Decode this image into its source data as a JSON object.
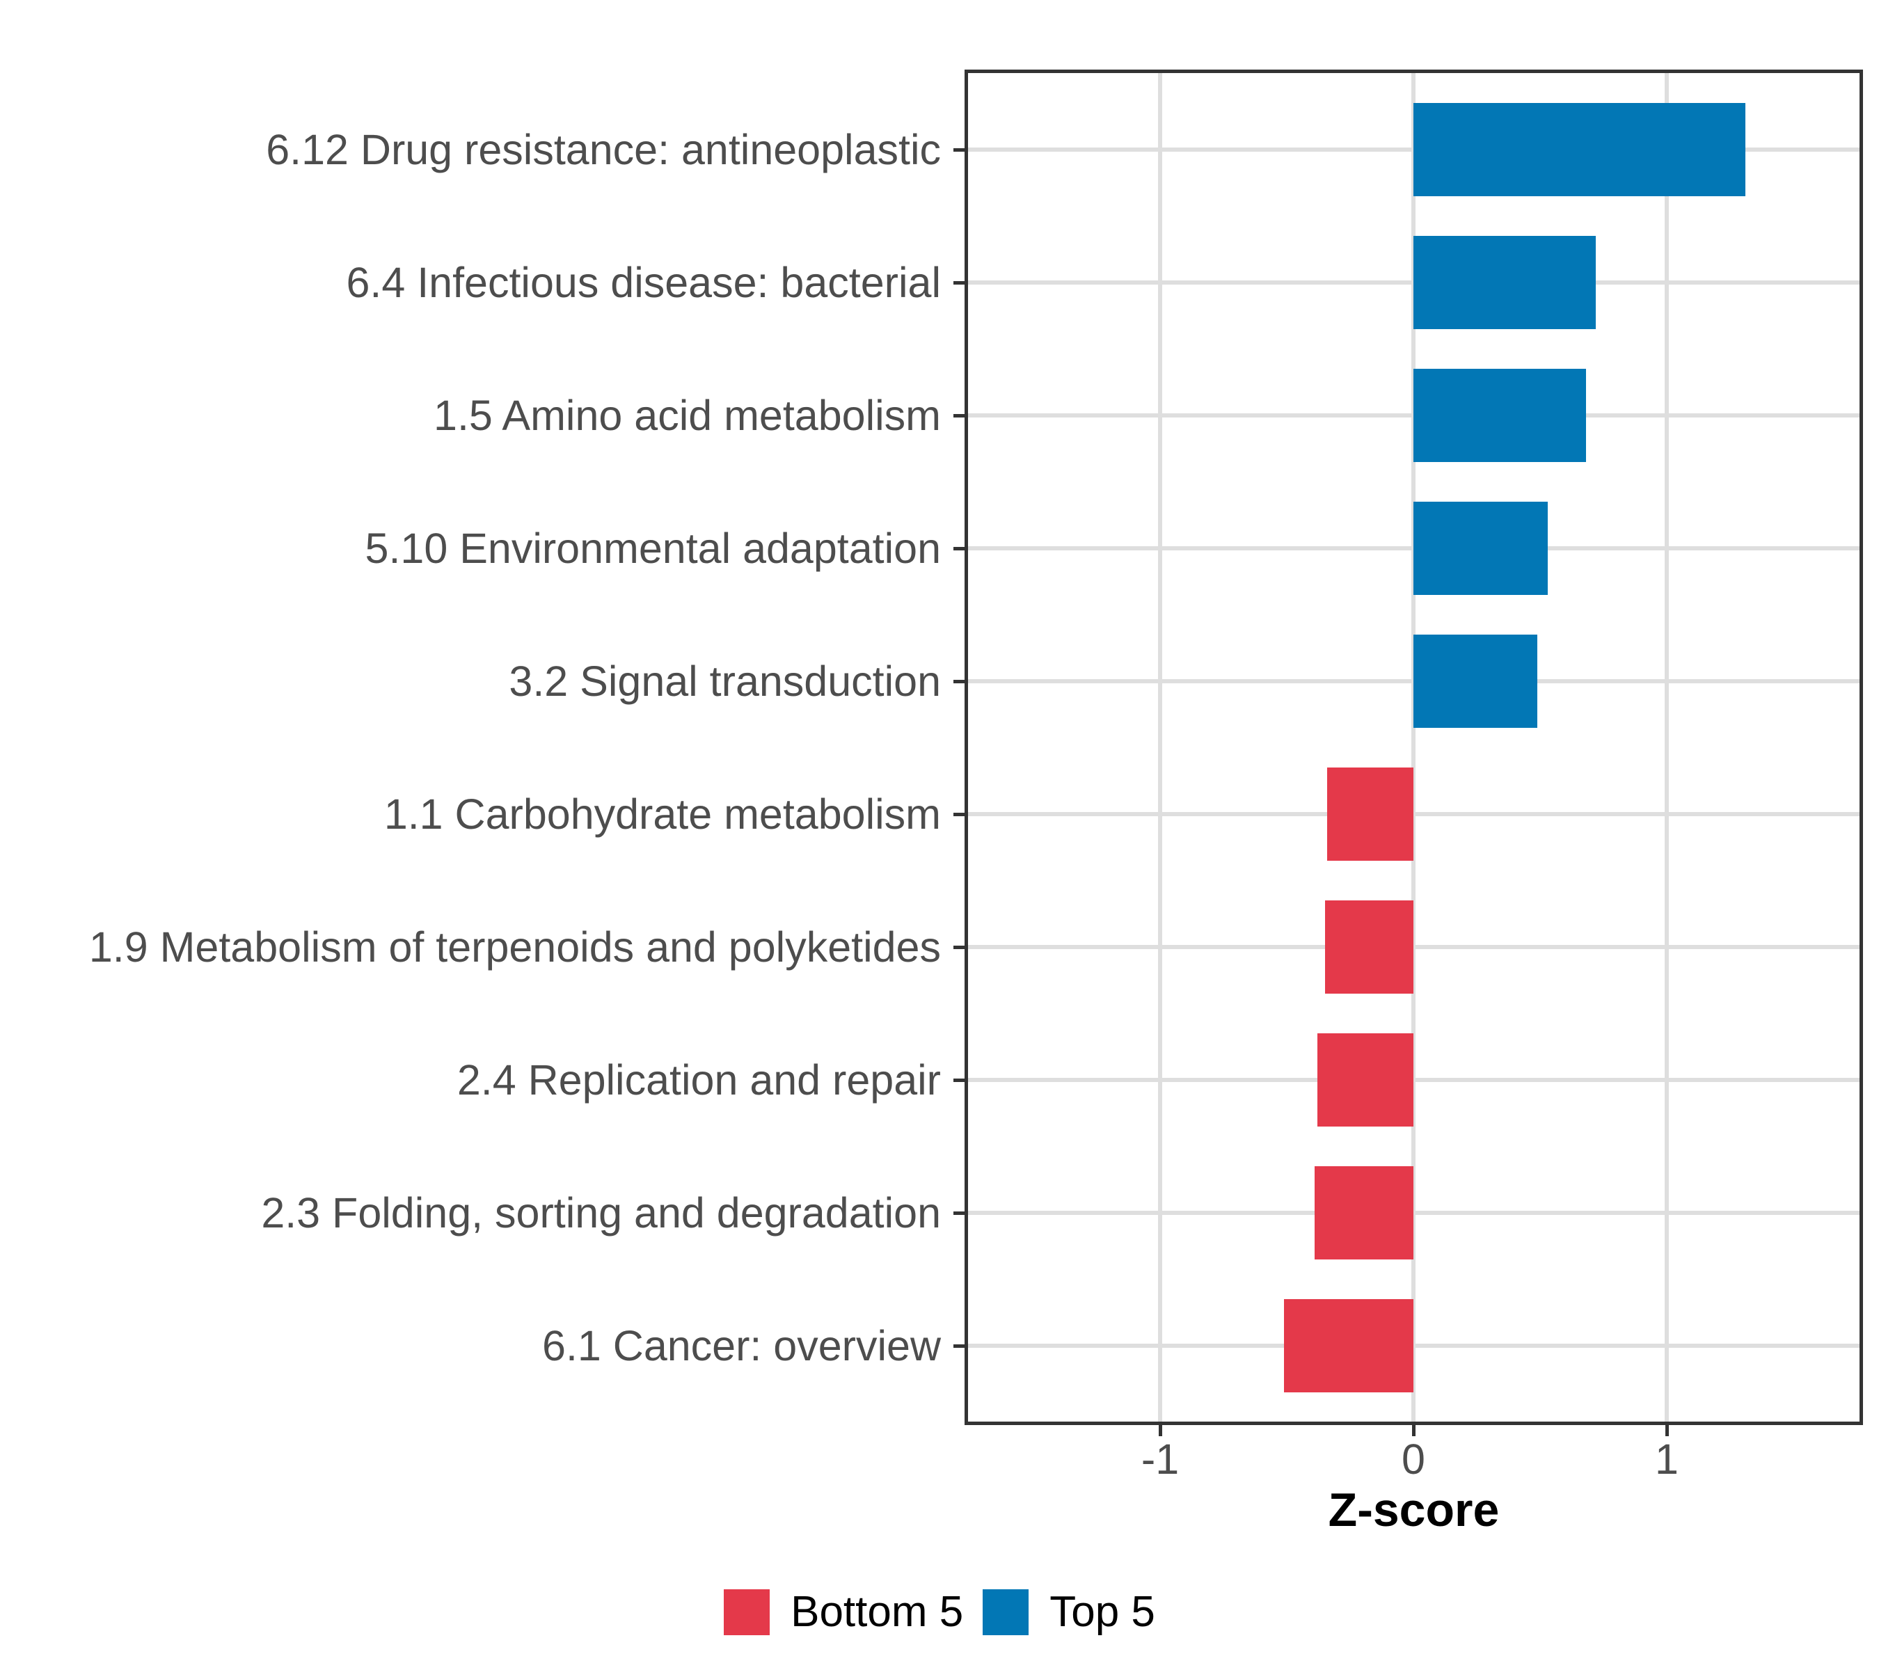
{
  "chart_data": {
    "type": "bar",
    "orientation": "horizontal",
    "title": "",
    "xlabel": "Z-score",
    "ylabel": "",
    "categories": [
      "6.12 Drug resistance: antineoplastic",
      "6.4 Infectious disease: bacterial",
      "1.5 Amino acid metabolism",
      "5.10 Environmental adaptation",
      "3.2 Signal transduction",
      "1.1 Carbohydrate metabolism",
      "1.9 Metabolism of terpenoids and polyketides",
      "2.4 Replication and repair",
      "2.3 Folding, sorting and degradation",
      "6.1 Cancer: overview"
    ],
    "values": [
      1.31,
      0.72,
      0.68,
      0.53,
      0.49,
      -0.34,
      -0.35,
      -0.38,
      -0.39,
      -0.51
    ],
    "groups": [
      "Top 5",
      "Top 5",
      "Top 5",
      "Top 5",
      "Top 5",
      "Bottom 5",
      "Bottom 5",
      "Bottom 5",
      "Bottom 5",
      "Bottom 5"
    ],
    "xlim": [
      -1.78,
      1.78
    ],
    "x_ticks": [
      {
        "value": -1,
        "label": "-1"
      },
      {
        "value": 0,
        "label": "0"
      },
      {
        "value": 1,
        "label": "1"
      }
    ],
    "grid": {
      "major_x": true,
      "major_y": true,
      "minor": false
    },
    "legend": {
      "position": "bottom",
      "entries": [
        {
          "label": "Bottom 5",
          "color": "#E4394A"
        },
        {
          "label": "Top 5",
          "color": "#0277B5"
        }
      ]
    }
  },
  "colors": {
    "bar_positive": "#0277B5",
    "bar_negative": "#E4394A",
    "axis_text": "#4D4D4D",
    "axis_title": "#000000",
    "gridline": "#DEDEDE",
    "panel_border": "#333333",
    "tick_mark": "#333333",
    "background": "#FFFFFF"
  }
}
